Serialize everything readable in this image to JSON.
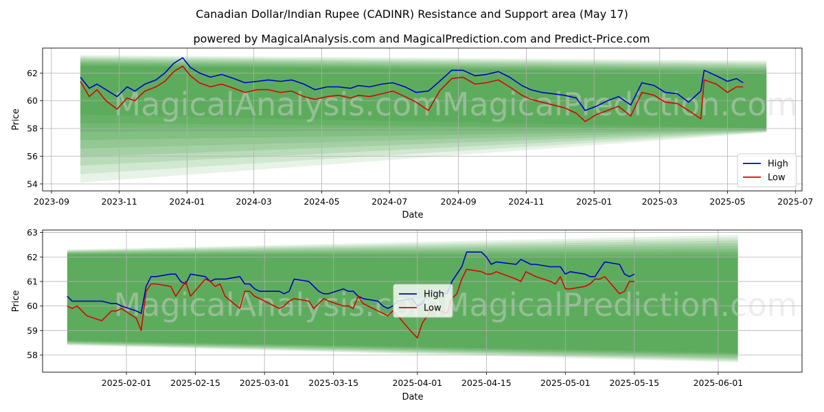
{
  "title": "Canadian Dollar/Indian Rupee (CADINR) Resistance and Support area (May 17)",
  "subtitle": "powered by MagicalAnalysis.com and MagicalPrediction.com and Predict-Price.com",
  "watermark": [
    "MagicalAnalysis.com",
    "MagicalPrediction.com"
  ],
  "colors": {
    "high": "#0000cc",
    "low": "#dd0000",
    "band": "#3a9a3a",
    "grid": "#b0b0b0"
  },
  "legend": {
    "high": "High",
    "low": "Low"
  },
  "chart_data": [
    {
      "type": "line",
      "xlabel": "Date",
      "ylabel": "Price",
      "xlim": [
        "2023-08-24",
        "2025-07-07"
      ],
      "ylim": [
        53.5,
        63.8
      ],
      "xticks": [
        "2023-09",
        "2023-11",
        "2024-01",
        "2024-03",
        "2024-05",
        "2024-07",
        "2024-09",
        "2024-11",
        "2025-01",
        "2025-03",
        "2025-05",
        "2025-07"
      ],
      "yticks": [
        54,
        56,
        58,
        60,
        62
      ],
      "grid": true,
      "legend_position": "lower-right",
      "band": {
        "start": "2023-09-27",
        "end": "2025-06-05",
        "outer_start": [
          54.1,
          63.3
        ],
        "outer_end": [
          57.7,
          62.9
        ],
        "core_start": [
          59.0,
          62.5
        ],
        "core_end": [
          58.0,
          62.0
        ]
      },
      "series": [
        {
          "name": "High",
          "x": [
            "2023-09-27",
            "2023-10-05",
            "2023-10-12",
            "2023-10-20",
            "2023-10-30",
            "2023-11-08",
            "2023-11-15",
            "2023-11-24",
            "2023-12-04",
            "2023-12-12",
            "2023-12-20",
            "2023-12-28",
            "2024-01-04",
            "2024-01-12",
            "2024-01-22",
            "2024-02-01",
            "2024-02-12",
            "2024-02-22",
            "2024-03-04",
            "2024-03-14",
            "2024-03-25",
            "2024-04-04",
            "2024-04-15",
            "2024-04-25",
            "2024-05-06",
            "2024-05-16",
            "2024-05-27",
            "2024-06-03",
            "2024-06-13",
            "2024-06-24",
            "2024-07-04",
            "2024-07-15",
            "2024-07-25",
            "2024-08-05",
            "2024-08-15",
            "2024-08-26",
            "2024-09-05",
            "2024-09-16",
            "2024-09-26",
            "2024-10-07",
            "2024-10-17",
            "2024-10-28",
            "2024-11-05",
            "2024-11-15",
            "2024-11-25",
            "2024-12-05",
            "2024-12-16",
            "2024-12-24",
            "2025-01-03",
            "2025-01-13",
            "2025-01-23",
            "2025-02-03",
            "2025-02-13",
            "2025-02-24",
            "2025-03-06",
            "2025-03-17",
            "2025-03-27",
            "2025-04-07",
            "2025-04-10",
            "2025-04-21",
            "2025-05-01",
            "2025-05-09",
            "2025-05-15"
          ],
          "values": [
            61.7,
            60.9,
            61.2,
            60.8,
            60.3,
            61.0,
            60.7,
            61.2,
            61.5,
            62.0,
            62.7,
            63.1,
            62.4,
            62.0,
            61.7,
            61.9,
            61.6,
            61.3,
            61.4,
            61.5,
            61.4,
            61.5,
            61.2,
            60.8,
            61.0,
            61.0,
            60.9,
            61.1,
            61.0,
            61.2,
            61.3,
            61.0,
            60.6,
            60.7,
            61.4,
            62.2,
            62.2,
            61.8,
            61.9,
            62.1,
            61.7,
            61.1,
            60.8,
            60.6,
            60.5,
            60.4,
            60.2,
            59.3,
            59.6,
            60.0,
            60.3,
            59.7,
            61.3,
            61.1,
            60.6,
            60.5,
            59.9,
            60.7,
            62.2,
            61.8,
            61.4,
            61.6,
            61.3
          ]
        },
        {
          "name": "Low",
          "x": [
            "2023-09-27",
            "2023-10-05",
            "2023-10-12",
            "2023-10-20",
            "2023-10-30",
            "2023-11-08",
            "2023-11-15",
            "2023-11-24",
            "2023-12-04",
            "2023-12-12",
            "2023-12-20",
            "2023-12-28",
            "2024-01-04",
            "2024-01-12",
            "2024-01-22",
            "2024-02-01",
            "2024-02-12",
            "2024-02-22",
            "2024-03-04",
            "2024-03-14",
            "2024-03-25",
            "2024-04-04",
            "2024-04-15",
            "2024-04-25",
            "2024-05-06",
            "2024-05-16",
            "2024-05-27",
            "2024-06-03",
            "2024-06-13",
            "2024-06-24",
            "2024-07-04",
            "2024-07-15",
            "2024-07-25",
            "2024-08-05",
            "2024-08-15",
            "2024-08-26",
            "2024-09-05",
            "2024-09-16",
            "2024-09-26",
            "2024-10-07",
            "2024-10-17",
            "2024-10-28",
            "2024-11-05",
            "2024-11-15",
            "2024-11-25",
            "2024-12-05",
            "2024-12-16",
            "2024-12-24",
            "2025-01-03",
            "2025-01-13",
            "2025-01-23",
            "2025-02-03",
            "2025-02-13",
            "2025-02-24",
            "2025-03-06",
            "2025-03-17",
            "2025-03-27",
            "2025-04-07",
            "2025-04-10",
            "2025-04-21",
            "2025-05-01",
            "2025-05-09",
            "2025-05-15"
          ],
          "values": [
            61.4,
            60.3,
            60.8,
            60.0,
            59.4,
            60.2,
            60.0,
            60.7,
            61.0,
            61.4,
            62.1,
            62.5,
            61.8,
            61.3,
            61.0,
            61.2,
            60.9,
            60.6,
            60.8,
            60.8,
            60.6,
            60.7,
            60.3,
            60.1,
            60.3,
            60.4,
            60.2,
            60.4,
            60.3,
            60.5,
            60.7,
            60.3,
            59.9,
            59.3,
            60.7,
            61.6,
            61.7,
            61.2,
            61.3,
            61.5,
            61.0,
            60.4,
            60.1,
            59.9,
            59.7,
            59.5,
            59.1,
            58.5,
            59.0,
            59.3,
            59.6,
            58.9,
            60.6,
            60.4,
            59.9,
            59.8,
            59.3,
            58.7,
            61.5,
            61.2,
            60.6,
            61.0,
            61.0
          ]
        }
      ]
    },
    {
      "type": "line",
      "xlabel": "Date",
      "ylabel": "Price",
      "xlim": [
        "2025-01-15",
        "2025-06-18"
      ],
      "ylim": [
        57.3,
        63.1
      ],
      "xticks": [
        "2025-02-01",
        "2025-02-15",
        "2025-03-01",
        "2025-03-15",
        "2025-04-01",
        "2025-04-15",
        "2025-05-01",
        "2025-05-15",
        "2025-06-01"
      ],
      "yticks": [
        58,
        59,
        60,
        61,
        62,
        63
      ],
      "grid": true,
      "legend_position": "center",
      "band": {
        "start": "2025-01-20",
        "end": "2025-06-05",
        "outer_start": [
          58.4,
          62.3
        ],
        "outer_end": [
          57.7,
          62.9
        ],
        "core_start": [
          58.6,
          62.1
        ],
        "core_end": [
          58.1,
          62.0
        ]
      },
      "series": [
        {
          "name": "High",
          "x": [
            "2025-01-20",
            "2025-01-21",
            "2025-01-22",
            "2025-01-24",
            "2025-01-27",
            "2025-01-29",
            "2025-01-30",
            "2025-01-31",
            "2025-02-03",
            "2025-02-04",
            "2025-02-05",
            "2025-02-06",
            "2025-02-07",
            "2025-02-10",
            "2025-02-11",
            "2025-02-12",
            "2025-02-13",
            "2025-02-14",
            "2025-02-17",
            "2025-02-18",
            "2025-02-19",
            "2025-02-20",
            "2025-02-21",
            "2025-02-24",
            "2025-02-25",
            "2025-02-26",
            "2025-02-27",
            "2025-02-28",
            "2025-03-03",
            "2025-03-04",
            "2025-03-05",
            "2025-03-06",
            "2025-03-07",
            "2025-03-10",
            "2025-03-11",
            "2025-03-12",
            "2025-03-13",
            "2025-03-14",
            "2025-03-17",
            "2025-03-18",
            "2025-03-19",
            "2025-03-20",
            "2025-03-21",
            "2025-03-24",
            "2025-03-25",
            "2025-03-26",
            "2025-03-27",
            "2025-03-28",
            "2025-03-31",
            "2025-04-01",
            "2025-04-02",
            "2025-04-03",
            "2025-04-04",
            "2025-04-07",
            "2025-04-08",
            "2025-04-09",
            "2025-04-10",
            "2025-04-11",
            "2025-04-14",
            "2025-04-15",
            "2025-04-16",
            "2025-04-17",
            "2025-04-21",
            "2025-04-22",
            "2025-04-23",
            "2025-04-24",
            "2025-04-25",
            "2025-04-28",
            "2025-04-29",
            "2025-04-30",
            "2025-05-01",
            "2025-05-02",
            "2025-05-05",
            "2025-05-06",
            "2025-05-07",
            "2025-05-08",
            "2025-05-09",
            "2025-05-12",
            "2025-05-13",
            "2025-05-14",
            "2025-05-15"
          ],
          "values": [
            60.4,
            60.2,
            60.2,
            60.2,
            60.2,
            60.1,
            60.1,
            60.0,
            59.8,
            59.7,
            60.8,
            61.2,
            61.2,
            61.3,
            61.3,
            61.0,
            60.9,
            61.3,
            61.2,
            61.0,
            61.1,
            61.1,
            61.1,
            61.2,
            60.9,
            60.9,
            60.7,
            60.6,
            60.6,
            60.6,
            60.5,
            60.6,
            61.1,
            61.0,
            60.8,
            60.6,
            60.5,
            60.5,
            60.7,
            60.6,
            60.6,
            60.4,
            60.3,
            60.2,
            60.0,
            59.9,
            60.0,
            60.2,
            60.3,
            60.0,
            60.1,
            60.5,
            60.6,
            60.5,
            61.0,
            61.3,
            61.6,
            62.2,
            62.2,
            62.0,
            61.7,
            61.8,
            61.7,
            61.9,
            61.8,
            61.7,
            61.7,
            61.6,
            61.6,
            61.6,
            61.3,
            61.4,
            61.3,
            61.2,
            61.2,
            61.5,
            61.8,
            61.7,
            61.3,
            61.2,
            61.3
          ]
        },
        {
          "name": "Low",
          "x": [
            "2025-01-20",
            "2025-01-21",
            "2025-01-22",
            "2025-01-24",
            "2025-01-27",
            "2025-01-29",
            "2025-01-30",
            "2025-01-31",
            "2025-02-03",
            "2025-02-04",
            "2025-02-05",
            "2025-02-06",
            "2025-02-07",
            "2025-02-10",
            "2025-02-11",
            "2025-02-12",
            "2025-02-13",
            "2025-02-14",
            "2025-02-17",
            "2025-02-18",
            "2025-02-19",
            "2025-02-20",
            "2025-02-21",
            "2025-02-24",
            "2025-02-25",
            "2025-02-26",
            "2025-02-27",
            "2025-02-28",
            "2025-03-03",
            "2025-03-04",
            "2025-03-05",
            "2025-03-06",
            "2025-03-07",
            "2025-03-10",
            "2025-03-11",
            "2025-03-12",
            "2025-03-13",
            "2025-03-14",
            "2025-03-17",
            "2025-03-18",
            "2025-03-19",
            "2025-03-20",
            "2025-03-21",
            "2025-03-24",
            "2025-03-25",
            "2025-03-26",
            "2025-03-27",
            "2025-03-28",
            "2025-03-31",
            "2025-04-01",
            "2025-04-02",
            "2025-04-03",
            "2025-04-04",
            "2025-04-07",
            "2025-04-08",
            "2025-04-09",
            "2025-04-10",
            "2025-04-11",
            "2025-04-14",
            "2025-04-15",
            "2025-04-16",
            "2025-04-17",
            "2025-04-21",
            "2025-04-22",
            "2025-04-23",
            "2025-04-24",
            "2025-04-25",
            "2025-04-28",
            "2025-04-29",
            "2025-04-30",
            "2025-05-01",
            "2025-05-02",
            "2025-05-05",
            "2025-05-06",
            "2025-05-07",
            "2025-05-08",
            "2025-05-09",
            "2025-05-12",
            "2025-05-13",
            "2025-05-14",
            "2025-05-15"
          ],
          "values": [
            60.0,
            59.9,
            60.0,
            59.6,
            59.4,
            59.8,
            59.8,
            59.9,
            59.5,
            59.0,
            60.6,
            60.9,
            60.9,
            60.8,
            60.4,
            60.7,
            61.0,
            60.4,
            61.1,
            61.0,
            60.8,
            60.9,
            60.4,
            59.9,
            60.6,
            60.6,
            60.4,
            60.3,
            60.0,
            59.9,
            60.0,
            60.2,
            60.3,
            60.2,
            59.9,
            60.1,
            60.3,
            60.2,
            60.0,
            60.0,
            59.9,
            60.4,
            60.1,
            59.8,
            59.7,
            59.6,
            59.8,
            59.6,
            58.9,
            58.7,
            59.3,
            59.6,
            59.9,
            59.7,
            60.3,
            60.5,
            61.1,
            61.5,
            61.4,
            61.3,
            61.3,
            61.4,
            61.1,
            61.0,
            61.4,
            61.3,
            61.2,
            61.0,
            60.9,
            61.2,
            60.7,
            60.7,
            60.8,
            60.9,
            61.1,
            61.1,
            61.2,
            60.5,
            60.6,
            61.0,
            61.0
          ]
        }
      ]
    }
  ]
}
